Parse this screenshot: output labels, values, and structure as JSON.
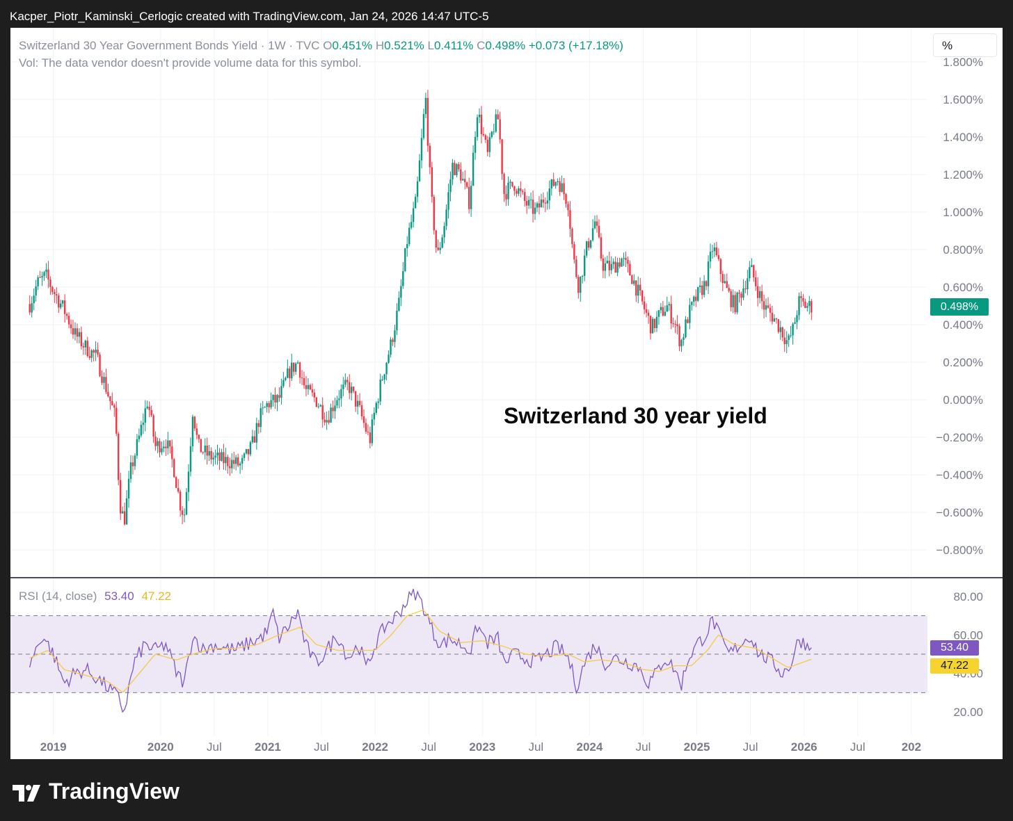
{
  "header": {
    "attribution": "Kacper_Piotr_Kaminski_Cerlogic created with TradingView.com, Jan 24, 2026 14:47 UTC-5"
  },
  "legend": {
    "symbol": "Switzerland 30 Year Government Bonds Yield · 1W · TVC",
    "o_label": "O",
    "o_value": "0.451%",
    "h_label": "H",
    "h_value": "0.521%",
    "l_label": "L",
    "l_value": "0.411%",
    "c_label": "C",
    "c_value": "0.498%",
    "change": "+0.073 (+17.18%)",
    "volume_note": "Vol: The data vendor doesn't provide volume data for this symbol."
  },
  "unit_toggle": "%",
  "annotation": "Switzerland 30 year yield",
  "last_price_label": "0.498%",
  "rsi": {
    "label": "RSI (14, close)",
    "value": "53.40",
    "ma_value": "47.22",
    "value_badge": "53.40",
    "ma_badge": "47.22"
  },
  "footer": {
    "brand": "TradingView"
  },
  "colors": {
    "up": "#089981",
    "down": "#f23645",
    "rsi_line": "#7e57c2",
    "rsi_ma": "#f7c948",
    "rsi_band": "#ede7f6",
    "grid": "#f0f3fa",
    "axis_text": "#787b86"
  },
  "chart_data": [
    {
      "type": "candlestick",
      "title": "Switzerland 30 Year Government Bonds Yield · 1W · TVC",
      "ylabel": "%",
      "ylim": [
        -0.9,
        1.85
      ],
      "y_ticks": [
        "1.800%",
        "1.600%",
        "1.400%",
        "1.200%",
        "1.000%",
        "0.800%",
        "0.600%",
        "0.400%",
        "0.200%",
        "0.000%",
        "−0.200%",
        "−0.400%",
        "−0.600%",
        "−0.800%"
      ],
      "y_tick_values": [
        1.8,
        1.6,
        1.4,
        1.2,
        1.0,
        0.8,
        0.6,
        0.4,
        0.2,
        0.0,
        -0.2,
        -0.4,
        -0.6,
        -0.8
      ],
      "x_ticks": [
        "2019",
        "2020",
        "Jul",
        "2021",
        "Jul",
        "2022",
        "Jul",
        "2023",
        "Jul",
        "2024",
        "Jul",
        "2025",
        "Jul",
        "2026",
        "Jul",
        "202"
      ],
      "x_tick_years": [
        2019.0,
        2020.0,
        2020.5,
        2021.0,
        2021.5,
        2022.0,
        2022.5,
        2023.0,
        2023.5,
        2024.0,
        2024.5,
        2025.0,
        2025.5,
        2026.0,
        2026.5,
        2027.0
      ],
      "series_approx_path": [
        [
          2018.78,
          0.51
        ],
        [
          2018.85,
          0.62
        ],
        [
          2018.93,
          0.66
        ],
        [
          2019.0,
          0.58
        ],
        [
          2019.1,
          0.48
        ],
        [
          2019.2,
          0.35
        ],
        [
          2019.3,
          0.28
        ],
        [
          2019.4,
          0.23
        ],
        [
          2019.5,
          0.05
        ],
        [
          2019.58,
          -0.1
        ],
        [
          2019.62,
          -0.55
        ],
        [
          2019.66,
          -0.65
        ],
        [
          2019.72,
          -0.38
        ],
        [
          2019.8,
          -0.2
        ],
        [
          2019.88,
          0.0
        ],
        [
          2019.95,
          -0.25
        ],
        [
          2020.05,
          -0.22
        ],
        [
          2020.12,
          -0.35
        ],
        [
          2020.18,
          -0.55
        ],
        [
          2020.22,
          -0.62
        ],
        [
          2020.27,
          -0.3
        ],
        [
          2020.3,
          -0.05
        ],
        [
          2020.35,
          -0.25
        ],
        [
          2020.45,
          -0.3
        ],
        [
          2020.55,
          -0.32
        ],
        [
          2020.65,
          -0.33
        ],
        [
          2020.75,
          -0.35
        ],
        [
          2020.85,
          -0.25
        ],
        [
          2020.92,
          -0.1
        ],
        [
          2021.0,
          -0.02
        ],
        [
          2021.1,
          0.0
        ],
        [
          2021.2,
          0.15
        ],
        [
          2021.28,
          0.2
        ],
        [
          2021.35,
          0.05
        ],
        [
          2021.45,
          0.0
        ],
        [
          2021.55,
          -0.1
        ],
        [
          2021.65,
          0.02
        ],
        [
          2021.75,
          0.08
        ],
        [
          2021.85,
          -0.05
        ],
        [
          2021.95,
          -0.22
        ],
        [
          2022.0,
          -0.05
        ],
        [
          2022.08,
          0.15
        ],
        [
          2022.15,
          0.3
        ],
        [
          2022.22,
          0.5
        ],
        [
          2022.3,
          0.85
        ],
        [
          2022.38,
          1.05
        ],
        [
          2022.43,
          1.35
        ],
        [
          2022.47,
          1.62
        ],
        [
          2022.52,
          1.1
        ],
        [
          2022.58,
          0.75
        ],
        [
          2022.65,
          0.95
        ],
        [
          2022.72,
          1.25
        ],
        [
          2022.8,
          1.2
        ],
        [
          2022.88,
          1.05
        ],
        [
          2022.95,
          1.55
        ],
        [
          2023.05,
          1.3
        ],
        [
          2023.1,
          1.45
        ],
        [
          2023.15,
          1.5
        ],
        [
          2023.2,
          1.1
        ],
        [
          2023.3,
          1.15
        ],
        [
          2023.4,
          1.05
        ],
        [
          2023.5,
          1.0
        ],
        [
          2023.6,
          1.1
        ],
        [
          2023.7,
          1.18
        ],
        [
          2023.8,
          1.05
        ],
        [
          2023.85,
          0.75
        ],
        [
          2023.9,
          0.6
        ],
        [
          2023.97,
          0.8
        ],
        [
          2024.05,
          0.95
        ],
        [
          2024.12,
          0.72
        ],
        [
          2024.2,
          0.7
        ],
        [
          2024.3,
          0.75
        ],
        [
          2024.4,
          0.65
        ],
        [
          2024.5,
          0.5
        ],
        [
          2024.58,
          0.38
        ],
        [
          2024.65,
          0.45
        ],
        [
          2024.72,
          0.5
        ],
        [
          2024.8,
          0.4
        ],
        [
          2024.85,
          0.3
        ],
        [
          2024.92,
          0.45
        ],
        [
          2025.0,
          0.55
        ],
        [
          2025.08,
          0.62
        ],
        [
          2025.15,
          0.82
        ],
        [
          2025.2,
          0.72
        ],
        [
          2025.28,
          0.58
        ],
        [
          2025.35,
          0.5
        ],
        [
          2025.42,
          0.58
        ],
        [
          2025.5,
          0.7
        ],
        [
          2025.56,
          0.6
        ],
        [
          2025.62,
          0.5
        ],
        [
          2025.7,
          0.45
        ],
        [
          2025.78,
          0.38
        ],
        [
          2025.85,
          0.3
        ],
        [
          2025.9,
          0.38
        ],
        [
          2025.95,
          0.52
        ],
        [
          2026.02,
          0.5
        ],
        [
          2026.06,
          0.498
        ]
      ]
    },
    {
      "type": "line",
      "title": "RSI (14, close)",
      "ylim": [
        10,
        90
      ],
      "y_ticks": [
        "80.00",
        "60.00",
        "40.00",
        "20.00"
      ],
      "y_tick_values": [
        80,
        60,
        40,
        20
      ],
      "band": [
        30,
        70
      ],
      "middle_line": 50,
      "series": [
        {
          "name": "RSI",
          "values_approx_path": [
            [
              2018.78,
              45
            ],
            [
              2018.9,
              60
            ],
            [
              2019.0,
              50
            ],
            [
              2019.1,
              35
            ],
            [
              2019.2,
              40
            ],
            [
              2019.3,
              42
            ],
            [
              2019.4,
              38
            ],
            [
              2019.5,
              33
            ],
            [
              2019.6,
              28
            ],
            [
              2019.66,
              20
            ],
            [
              2019.75,
              45
            ],
            [
              2019.85,
              55
            ],
            [
              2019.95,
              52
            ],
            [
              2020.05,
              55
            ],
            [
              2020.15,
              40
            ],
            [
              2020.22,
              35
            ],
            [
              2020.3,
              60
            ],
            [
              2020.4,
              52
            ],
            [
              2020.5,
              55
            ],
            [
              2020.6,
              53
            ],
            [
              2020.7,
              52
            ],
            [
              2020.8,
              55
            ],
            [
              2020.92,
              58
            ],
            [
              2021.0,
              62
            ],
            [
              2021.05,
              72
            ],
            [
              2021.1,
              58
            ],
            [
              2021.2,
              65
            ],
            [
              2021.28,
              72
            ],
            [
              2021.35,
              55
            ],
            [
              2021.45,
              45
            ],
            [
              2021.55,
              52
            ],
            [
              2021.65,
              60
            ],
            [
              2021.75,
              48
            ],
            [
              2021.85,
              55
            ],
            [
              2021.92,
              42
            ],
            [
              2022.0,
              55
            ],
            [
              2022.1,
              65
            ],
            [
              2022.2,
              70
            ],
            [
              2022.3,
              78
            ],
            [
              2022.38,
              82
            ],
            [
              2022.45,
              75
            ],
            [
              2022.55,
              60
            ],
            [
              2022.62,
              55
            ],
            [
              2022.7,
              58
            ],
            [
              2022.8,
              55
            ],
            [
              2022.9,
              52
            ],
            [
              2022.95,
              65
            ],
            [
              2023.05,
              56
            ],
            [
              2023.15,
              58
            ],
            [
              2023.2,
              45
            ],
            [
              2023.3,
              50
            ],
            [
              2023.4,
              48
            ],
            [
              2023.5,
              46
            ],
            [
              2023.6,
              50
            ],
            [
              2023.7,
              54
            ],
            [
              2023.8,
              48
            ],
            [
              2023.88,
              33
            ],
            [
              2023.95,
              45
            ],
            [
              2024.05,
              55
            ],
            [
              2024.15,
              45
            ],
            [
              2024.25,
              48
            ],
            [
              2024.35,
              46
            ],
            [
              2024.45,
              44
            ],
            [
              2024.55,
              35
            ],
            [
              2024.62,
              40
            ],
            [
              2024.7,
              48
            ],
            [
              2024.8,
              42
            ],
            [
              2024.85,
              33
            ],
            [
              2024.92,
              48
            ],
            [
              2025.0,
              55
            ],
            [
              2025.08,
              60
            ],
            [
              2025.15,
              68
            ],
            [
              2025.22,
              58
            ],
            [
              2025.3,
              50
            ],
            [
              2025.4,
              55
            ],
            [
              2025.5,
              60
            ],
            [
              2025.58,
              50
            ],
            [
              2025.65,
              48
            ],
            [
              2025.72,
              45
            ],
            [
              2025.8,
              40
            ],
            [
              2025.88,
              45
            ],
            [
              2025.95,
              58
            ],
            [
              2026.02,
              55
            ],
            [
              2026.06,
              53.4
            ]
          ]
        },
        {
          "name": "RSI-based MA",
          "values_approx_path": [
            [
              2018.78,
              48
            ],
            [
              2018.95,
              52
            ],
            [
              2019.1,
              42
            ],
            [
              2019.3,
              39
            ],
            [
              2019.5,
              36
            ],
            [
              2019.65,
              30
            ],
            [
              2019.8,
              40
            ],
            [
              2019.95,
              50
            ],
            [
              2020.15,
              47
            ],
            [
              2020.3,
              50
            ],
            [
              2020.5,
              53
            ],
            [
              2020.7,
              53
            ],
            [
              2020.9,
              55
            ],
            [
              2021.1,
              60
            ],
            [
              2021.3,
              64
            ],
            [
              2021.45,
              55
            ],
            [
              2021.65,
              52
            ],
            [
              2021.85,
              52
            ],
            [
              2022.0,
              52
            ],
            [
              2022.15,
              60
            ],
            [
              2022.3,
              70
            ],
            [
              2022.45,
              73
            ],
            [
              2022.6,
              62
            ],
            [
              2022.8,
              56
            ],
            [
              2023.0,
              57
            ],
            [
              2023.2,
              54
            ],
            [
              2023.4,
              50
            ],
            [
              2023.6,
              49
            ],
            [
              2023.8,
              50
            ],
            [
              2023.95,
              46
            ],
            [
              2024.1,
              47
            ],
            [
              2024.3,
              46
            ],
            [
              2024.5,
              42
            ],
            [
              2024.65,
              41
            ],
            [
              2024.8,
              44
            ],
            [
              2024.95,
              44
            ],
            [
              2025.1,
              52
            ],
            [
              2025.2,
              60
            ],
            [
              2025.35,
              55
            ],
            [
              2025.55,
              53
            ],
            [
              2025.7,
              48
            ],
            [
              2025.85,
              43
            ],
            [
              2026.0,
              46
            ],
            [
              2026.06,
              47.22
            ]
          ]
        }
      ]
    }
  ]
}
